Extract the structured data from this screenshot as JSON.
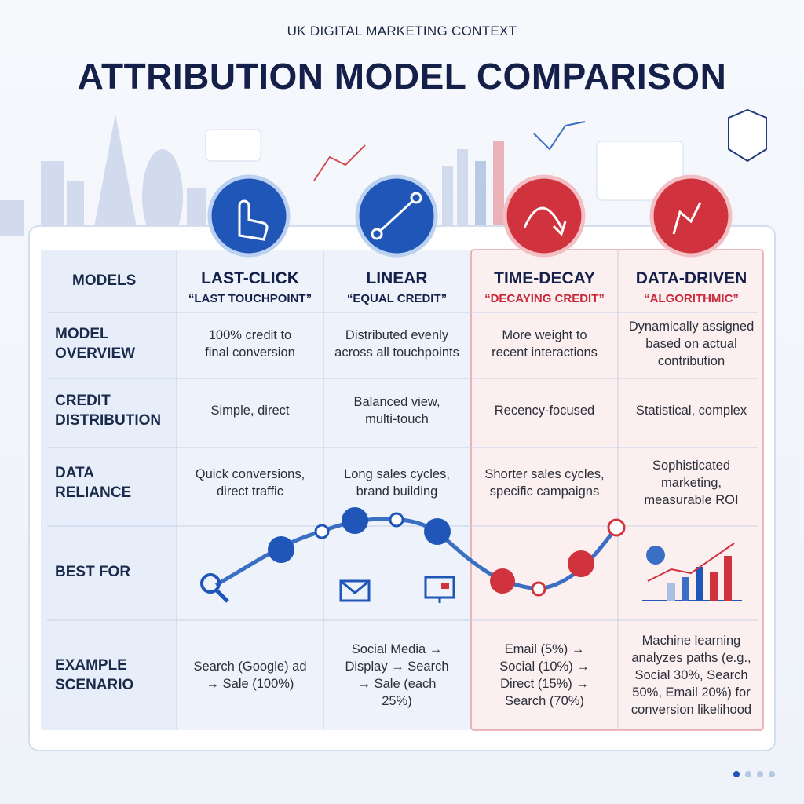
{
  "header": {
    "subtitle": "UK DIGITAL MARKETING CONTEXT",
    "title": "ATTRIBUTION MODEL COMPARISON"
  },
  "table": {
    "corner": "MODELS",
    "models": [
      {
        "name": "LAST-CLICK",
        "tagline": "“LAST TOUCHPOINT”"
      },
      {
        "name": "LINEAR",
        "tagline": "“EQUAL CREDIT”"
      },
      {
        "name": "TIME-DECAY",
        "tagline": "“DECAYING CREDIT”"
      },
      {
        "name": "DATA-DRIVEN",
        "tagline": "“ALGORITHMIC”"
      }
    ],
    "rows": [
      {
        "label": [
          "MODEL",
          "OVERVIEW"
        ],
        "cells": [
          [
            "100% credit to",
            "final conversion"
          ],
          [
            "Distributed evenly",
            "across all touchpoints"
          ],
          [
            "More weight to",
            "recent interactions"
          ],
          [
            "Dynamically assigned",
            "based on actual",
            "contribution"
          ]
        ]
      },
      {
        "label": [
          "CREDIT",
          "DISTRIBUTION"
        ],
        "cells": [
          [
            "Simple, direct"
          ],
          [
            "Balanced view,",
            "multi-touch"
          ],
          [
            "Recency-focused"
          ],
          [
            "Statistical, complex"
          ]
        ]
      },
      {
        "label": [
          "DATA",
          "RELIANCE"
        ],
        "cells": [
          [
            "Quick conversions,",
            "direct traffic"
          ],
          [
            "Long sales cycles,",
            "brand building"
          ],
          [
            "Shorter sales cycles,",
            "specific campaigns"
          ],
          [
            "Sophisticated",
            "marketing,",
            "measurable ROI"
          ]
        ]
      },
      {
        "label": [
          "BEST FOR"
        ]
      },
      {
        "label": [
          "EXAMPLE",
          "SCENARIO"
        ],
        "cells": [
          [
            "Search (Google) ad",
            "→ Sale (100%)"
          ],
          [
            "Social Media →",
            "Display → Search",
            "→ Sale (each",
            "25%)"
          ],
          [
            "Email (5%) →",
            "Social (10%) →",
            "Direct (15%) →",
            "Search (70%)"
          ],
          [
            "Machine learning",
            "analyzes paths (e.g.,",
            "Social 30%, Search",
            "50%, Email 20%) for",
            "conversion likelihood"
          ]
        ]
      }
    ]
  }
}
